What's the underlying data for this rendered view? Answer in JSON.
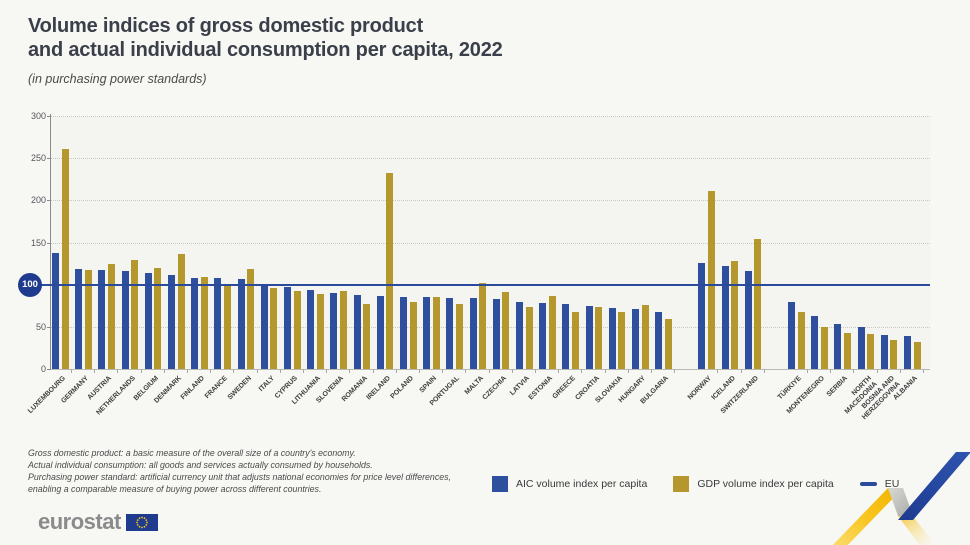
{
  "title": {
    "line1": "Volume indices of gross domestic product",
    "line2": "and actual individual consumption per capita, 2022"
  },
  "subtitle": "(in purchasing power standards)",
  "chart_data": {
    "type": "bar",
    "title": "Volume indices of gross domestic product and actual individual consumption per capita, 2022",
    "unit_note": "in purchasing power standards",
    "ylim": [
      0,
      300
    ],
    "yticks": [
      0,
      50,
      100,
      150,
      200,
      250,
      300
    ],
    "grid": "dotted horizontal",
    "reference_line": {
      "label": "EU",
      "value": 100
    },
    "series_names": [
      "AIC volume index per capita",
      "GDP volume index per capita"
    ],
    "groups": [
      [
        {
          "label": "LUXEMBOURG",
          "aic": 138,
          "gdp": 261
        },
        {
          "label": "GERMANY",
          "aic": 119,
          "gdp": 117
        },
        {
          "label": "AUSTRIA",
          "aic": 117,
          "gdp": 124
        },
        {
          "label": "NETHERLANDS",
          "aic": 116,
          "gdp": 129
        },
        {
          "label": "BELGIUM",
          "aic": 114,
          "gdp": 120
        },
        {
          "label": "DENMARK",
          "aic": 111,
          "gdp": 136
        },
        {
          "label": "FINLAND",
          "aic": 108,
          "gdp": 109
        },
        {
          "label": "FRANCE",
          "aic": 108,
          "gdp": 101
        },
        {
          "label": "SWEDEN",
          "aic": 107,
          "gdp": 119
        },
        {
          "label": "ITALY",
          "aic": 100,
          "gdp": 96
        },
        {
          "label": "CYPRUS",
          "aic": 97,
          "gdp": 92
        },
        {
          "label": "LITHUANIA",
          "aic": 94,
          "gdp": 89
        },
        {
          "label": "SLOVENIA",
          "aic": 90,
          "gdp": 92
        },
        {
          "label": "ROMANIA",
          "aic": 88,
          "gdp": 77
        },
        {
          "label": "IRELAND",
          "aic": 87,
          "gdp": 233
        },
        {
          "label": "POLAND",
          "aic": 86,
          "gdp": 80
        },
        {
          "label": "SPAIN",
          "aic": 85,
          "gdp": 85
        },
        {
          "label": "PORTUGAL",
          "aic": 84,
          "gdp": 77
        },
        {
          "label": "MALTA",
          "aic": 84,
          "gdp": 102
        },
        {
          "label": "CZECHIA",
          "aic": 83,
          "gdp": 91
        },
        {
          "label": "LATVIA",
          "aic": 79,
          "gdp": 73
        },
        {
          "label": "ESTONIA",
          "aic": 78,
          "gdp": 87
        },
        {
          "label": "GREECE",
          "aic": 77,
          "gdp": 68
        },
        {
          "label": "CROATIA",
          "aic": 75,
          "gdp": 73
        },
        {
          "label": "SLOVAKIA",
          "aic": 72,
          "gdp": 68
        },
        {
          "label": "HUNGARY",
          "aic": 71,
          "gdp": 76
        },
        {
          "label": "BULGARIA",
          "aic": 68,
          "gdp": 59
        }
      ],
      [
        {
          "label": "NORWAY",
          "aic": 126,
          "gdp": 211
        },
        {
          "label": "ICELAND",
          "aic": 122,
          "gdp": 128
        },
        {
          "label": "SWITZERLAND",
          "aic": 116,
          "gdp": 154
        }
      ],
      [
        {
          "label": "TÜRKIYE",
          "aic": 79,
          "gdp": 68
        },
        {
          "label": "MONTENEGRO",
          "aic": 63,
          "gdp": 50
        },
        {
          "label": "SERBIA",
          "aic": 53,
          "gdp": 43
        },
        {
          "label": "NORTH\nMACEDONIA",
          "aic": 50,
          "gdp": 41
        },
        {
          "label": "BOSNIA AND\nHERZEGOVINA",
          "aic": 40,
          "gdp": 34
        },
        {
          "label": "ALBANIA",
          "aic": 39,
          "gdp": 32
        }
      ]
    ]
  },
  "legend": {
    "aic_label": "AIC volume index per capita",
    "gdp_label": "GDP volume index per capita",
    "eu_label": "EU"
  },
  "reference_badge": "100",
  "footnotes": [
    "Gross domestic product: a basic measure of the overall size of a country's economy.",
    "Actual individual consumption: all goods and services actually consumed by households.",
    "Purchasing power standard: artificial currency unit that adjusts national economies for price level differences,",
    "enabling a comparable measure of buying power across different countries."
  ],
  "logo": {
    "text": "eurostat"
  },
  "colors": {
    "aic_blue": "#2d4f9e",
    "gdp_gold": "#b4982e",
    "eu_line": "#2b4a9b",
    "badge": "#1f3b8d"
  }
}
